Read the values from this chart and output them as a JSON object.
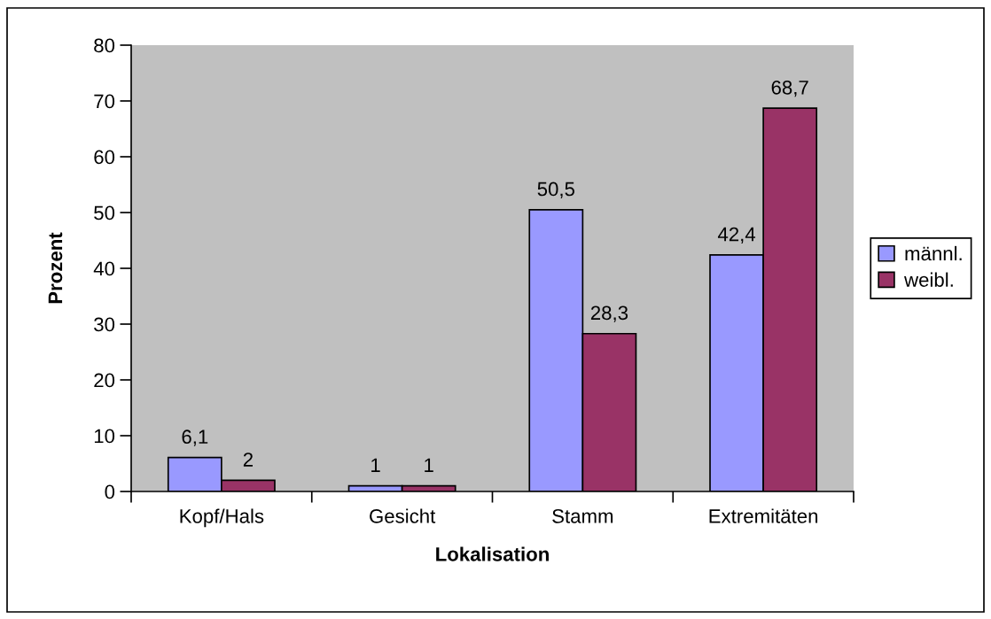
{
  "chart_data": {
    "type": "bar",
    "xlabel": "Lokalisation",
    "ylabel": "Prozent",
    "categories": [
      "Kopf/Hals",
      "Gesicht",
      "Stamm",
      "Extremitäten"
    ],
    "series": [
      {
        "name": "männl.",
        "color": "#9999ff",
        "values": [
          6.1,
          1,
          50.5,
          42.4
        ],
        "value_labels": [
          "6,1",
          "1",
          "50,5",
          "42,4"
        ]
      },
      {
        "name": "weibl.",
        "color": "#993366",
        "values": [
          2,
          1,
          28.3,
          68.7
        ],
        "value_labels": [
          "2",
          "1",
          "28,3",
          "68,7"
        ]
      }
    ],
    "ylim": [
      0,
      80
    ],
    "yticks": [
      0,
      10,
      20,
      30,
      40,
      50,
      60,
      70,
      80
    ],
    "grid": false,
    "legend": "right"
  }
}
